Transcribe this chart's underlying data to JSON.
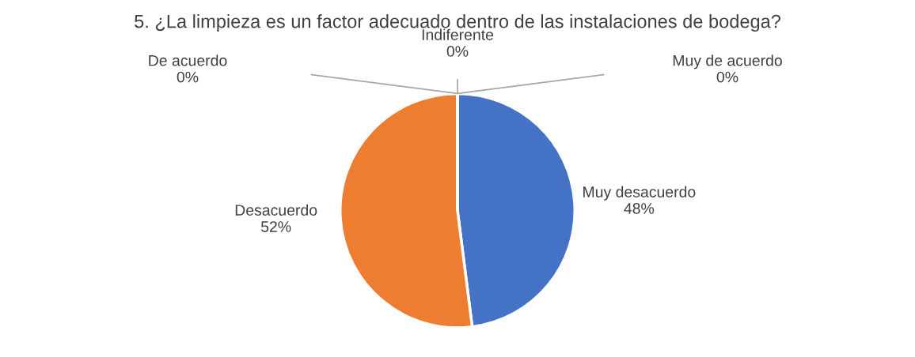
{
  "chart_data": {
    "type": "pie",
    "title": "5. ¿La limpieza es un factor adecuado dentro de las instalaciones de bodega?",
    "categories": [
      "Muy desacuerdo",
      "Desacuerdo",
      "De acuerdo",
      "Indiferente",
      "Muy de acuerdo"
    ],
    "values": [
      48,
      52,
      0,
      0,
      0
    ],
    "value_labels": [
      "48%",
      "52%",
      "0%",
      "0%",
      "0%"
    ],
    "colors": [
      "#4472c4",
      "#ed7d31",
      "#a5a5a5",
      "#ffc000",
      "#5b9bd5"
    ],
    "legend": false
  }
}
